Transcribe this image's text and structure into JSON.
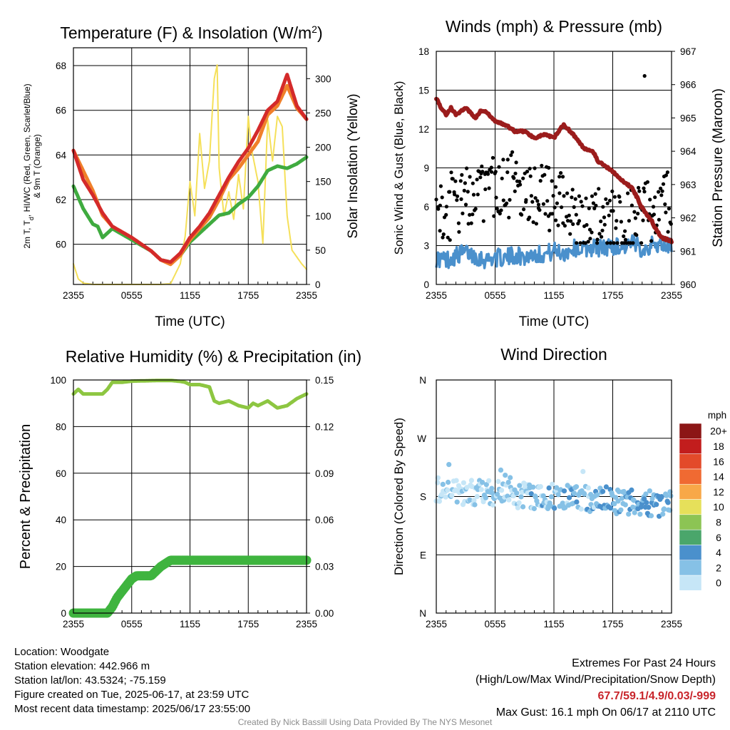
{
  "chart_data": [
    {
      "type": "line",
      "panel": "temperature",
      "title": "Temperature (F) & Insolation (W/m²)",
      "title_base": "Temperature (F) & Insolation (W/m",
      "title_sup": "2",
      "title_tail": ")",
      "xlabel": "Time (UTC)",
      "ylabel_lines": [
        "2m T, T",
        "d",
        ", HI/WC (Red, Green, Scarlet/Blue)",
        "& 9m T (Orange)"
      ],
      "y2label": "Solar Insolation (Yellow)",
      "x_ticks": [
        "2355",
        "0555",
        "1155",
        "1755",
        "2355"
      ],
      "ylim": [
        58.2,
        68.8
      ],
      "y_ticks": [
        60,
        62,
        64,
        66,
        68
      ],
      "y2lim": [
        0,
        345
      ],
      "y2_ticks": [
        0,
        50,
        100,
        150,
        200,
        250,
        300
      ],
      "xlim": [
        0,
        24
      ],
      "grid": true,
      "series": [
        {
          "axis": "left",
          "color": "#3fab3f",
          "width": 5,
          "x": [
            0,
            1,
            2,
            2.5,
            3,
            4,
            6,
            8,
            9,
            10,
            11,
            12,
            13,
            14,
            15,
            16,
            17,
            18,
            19,
            20,
            21,
            22,
            23,
            24
          ],
          "y": [
            62.6,
            61.6,
            60.9,
            60.8,
            60.3,
            60.7,
            60.2,
            59.7,
            59.3,
            59.2,
            59.5,
            60.1,
            60.5,
            60.9,
            61.3,
            61.4,
            61.8,
            62.1,
            62.6,
            63.3,
            63.5,
            63.4,
            63.6,
            63.9
          ]
        },
        {
          "axis": "left",
          "color": "#f0802a",
          "width": 5,
          "x": [
            0,
            1,
            2,
            3,
            4,
            6,
            8,
            9,
            10,
            11,
            12,
            13,
            14,
            15,
            16,
            17,
            18,
            19,
            20,
            21,
            22,
            23,
            24
          ],
          "y": [
            64.2,
            63.3,
            62.4,
            61.3,
            60.8,
            60.3,
            59.7,
            59.3,
            59.1,
            59.5,
            60.2,
            60.7,
            61.2,
            62.0,
            62.9,
            63.4,
            64.0,
            64.6,
            65.8,
            66.2,
            67.1,
            66.1,
            65.6
          ]
        },
        {
          "axis": "left",
          "color": "#d42a2a",
          "width": 5,
          "x": [
            0,
            1,
            2,
            3,
            4,
            6,
            8,
            9,
            10,
            11,
            12,
            13,
            14,
            15,
            16,
            17,
            18,
            19,
            20,
            21,
            22,
            23,
            24
          ],
          "y": [
            64.2,
            62.9,
            62.2,
            61.4,
            60.8,
            60.3,
            59.7,
            59.3,
            59.2,
            59.6,
            60.3,
            60.8,
            61.4,
            62.2,
            63.0,
            63.7,
            64.3,
            65.1,
            66.0,
            66.4,
            67.6,
            66.2,
            65.6
          ]
        },
        {
          "axis": "right",
          "color": "#f5e05a",
          "width": 2,
          "x": [
            0,
            0.5,
            1,
            2,
            4,
            6,
            8,
            9,
            10,
            11,
            11.5,
            12,
            12.5,
            13,
            13.5,
            14,
            14.5,
            14.8,
            15,
            15.5,
            16,
            16.5,
            17,
            17.5,
            18,
            18.3,
            19,
            19.5,
            20,
            20.5,
            21,
            21.5,
            22,
            22.5,
            23,
            23.5,
            24
          ],
          "y": [
            30,
            8,
            2,
            0,
            0,
            0,
            0,
            0,
            1,
            30,
            70,
            150,
            100,
            220,
            140,
            180,
            300,
            320,
            170,
            100,
            135,
            95,
            160,
            110,
            245,
            200,
            150,
            60,
            240,
            180,
            245,
            230,
            100,
            50,
            40,
            30,
            22
          ]
        }
      ]
    },
    {
      "type": "line",
      "panel": "winds",
      "title": "Winds (mph) & Pressure (mb)",
      "xlabel": "Time (UTC)",
      "ylabel": "Sonic Wind & Gust (Blue, Black)",
      "y2label": "Station Pressure (Maroon)",
      "x_ticks": [
        "2355",
        "0555",
        "1155",
        "1755",
        "2355"
      ],
      "ylim": [
        0,
        18
      ],
      "y_ticks": [
        0,
        3,
        6,
        9,
        12,
        15,
        18
      ],
      "y2lim": [
        960,
        967
      ],
      "y2_ticks": [
        960,
        961,
        962,
        963,
        964,
        965,
        966,
        967
      ],
      "xlim": [
        0,
        24
      ],
      "grid": true,
      "series": [
        {
          "axis": "right",
          "color": "#9b1c1c",
          "width": 5,
          "name": "pressure",
          "x": [
            0,
            0.5,
            1,
            1.5,
            2,
            3,
            4,
            4.5,
            5,
            6,
            7,
            8,
            9,
            10,
            11,
            12,
            13,
            14,
            15,
            16,
            16.5,
            17,
            18,
            19,
            20,
            20.5,
            21,
            22,
            22.5,
            23,
            24
          ],
          "y": [
            965.6,
            965.3,
            965.1,
            965.3,
            965.1,
            965.3,
            965.0,
            965.2,
            965.2,
            964.9,
            964.8,
            964.6,
            964.6,
            964.4,
            964.5,
            964.4,
            964.8,
            964.5,
            964.1,
            964.0,
            963.7,
            963.6,
            963.4,
            963.1,
            962.9,
            962.6,
            962.3,
            961.9,
            961.6,
            961.4,
            961.3
          ]
        },
        {
          "axis": "left",
          "color": "#4a90cc",
          "width": 5,
          "name": "wind",
          "x": [
            0,
            1,
            2,
            3,
            4,
            5,
            6,
            7,
            8,
            9,
            10,
            11,
            12,
            13,
            14,
            15,
            16,
            17,
            18,
            19,
            20,
            21,
            22,
            23,
            24
          ],
          "y": [
            2.0,
            1.9,
            2.2,
            2.5,
            2.2,
            1.9,
            2.1,
            2.0,
            2.3,
            2.1,
            2.4,
            2.3,
            2.6,
            2.4,
            2.8,
            2.7,
            2.9,
            2.8,
            3.0,
            2.9,
            3.1,
            2.8,
            3.0,
            3.1,
            2.9
          ]
        }
      ],
      "gust_seed": 17,
      "gust_range": [
        3.2,
        10.8
      ],
      "gust_points": 260,
      "gust_max": {
        "x": 21.25,
        "y": 16.1
      }
    },
    {
      "type": "line",
      "panel": "humidity",
      "title": "Relative Humidity (%) & Precipitation (in)",
      "ylabel": "Percent & Precipitation",
      "x_ticks": [
        "2355",
        "0555",
        "1155",
        "1755",
        "2355"
      ],
      "ylim": [
        0,
        100
      ],
      "y_ticks": [
        0,
        20,
        40,
        60,
        80,
        100
      ],
      "y2lim": [
        0,
        0.15
      ],
      "y2_ticks": [
        "0.00",
        "0.03",
        "0.06",
        "0.09",
        "0.12",
        "0.15"
      ],
      "xlim": [
        0,
        24
      ],
      "grid": true,
      "series": [
        {
          "axis": "left",
          "color": "#8dc641",
          "width": 5,
          "name": "rh",
          "x": [
            0,
            0.5,
            1,
            2,
            3,
            3.5,
            4,
            5,
            6,
            7,
            8,
            9,
            10,
            11,
            11.5,
            12,
            13,
            14,
            14.5,
            15,
            16,
            17,
            18,
            18.5,
            19,
            20,
            21,
            22,
            23,
            24
          ],
          "y": [
            94,
            96,
            94,
            94,
            94,
            96,
            99,
            99,
            99.5,
            99.6,
            99.7,
            99.8,
            99.8,
            99.4,
            99,
            98,
            98,
            97,
            91,
            90,
            91,
            89,
            88,
            90,
            89,
            91,
            88,
            89,
            92,
            94
          ]
        },
        {
          "axis": "right",
          "color": "#3fb43f",
          "width": 13,
          "name": "precip",
          "x": [
            0,
            2,
            3.5,
            4,
            4.5,
            5,
            5.5,
            6,
            6.5,
            7,
            7.5,
            8,
            8.5,
            9,
            9.5,
            10,
            10.5,
            24
          ],
          "y": [
            0.0,
            0.0,
            0.0,
            0.004,
            0.01,
            0.014,
            0.018,
            0.022,
            0.024,
            0.024,
            0.024,
            0.024,
            0.027,
            0.03,
            0.032,
            0.034,
            0.034,
            0.034
          ]
        }
      ]
    },
    {
      "type": "scatter",
      "panel": "wind_direction",
      "title": "Wind Direction",
      "ylabel": "Direction (Colored By Speed)",
      "x_ticks": [
        "2355",
        "0555",
        "1155",
        "1755",
        "2355"
      ],
      "y_ticks": [
        "N",
        "E",
        "S",
        "W",
        "N"
      ],
      "ylim": [
        0,
        360
      ],
      "xlim": [
        0,
        24
      ],
      "grid": true,
      "seed": 31,
      "points": 280,
      "direction_center": 190,
      "legend_title": "mph",
      "legend_labels": [
        "0",
        "2",
        "4",
        "6",
        "8",
        "10",
        "12",
        "14",
        "16",
        "18",
        "20+"
      ],
      "legend_colors": [
        "#c6e6f7",
        "#86c1e6",
        "#4a90cc",
        "#4aa66b",
        "#8cc454",
        "#e6e05a",
        "#f8a848",
        "#f06a32",
        "#e34a2a",
        "#c21d1d",
        "#8c1616"
      ]
    }
  ],
  "info": {
    "location": "Location: Woodgate",
    "elevation": "Station elevation: 442.966 m",
    "latlon": "Station lat/lon: 43.5324; -75.159",
    "created": "Figure created on Tue, 2025-06-17, at 23:59 UTC",
    "recent": "Most recent data timestamp: 2025/06/17 23:55:00"
  },
  "extremes": {
    "title": "Extremes For Past 24 Hours",
    "subtitle": "(High/Low/Max Wind/Precipitation/Snow Depth)",
    "values": "67.7/59.1/4.9/0.03/-999",
    "gust": "Max Gust: 16.1 mph On 06/17 at 2110 UTC"
  },
  "credit": "Created By Nick Bassill Using Data Provided By The NYS Mesonet"
}
